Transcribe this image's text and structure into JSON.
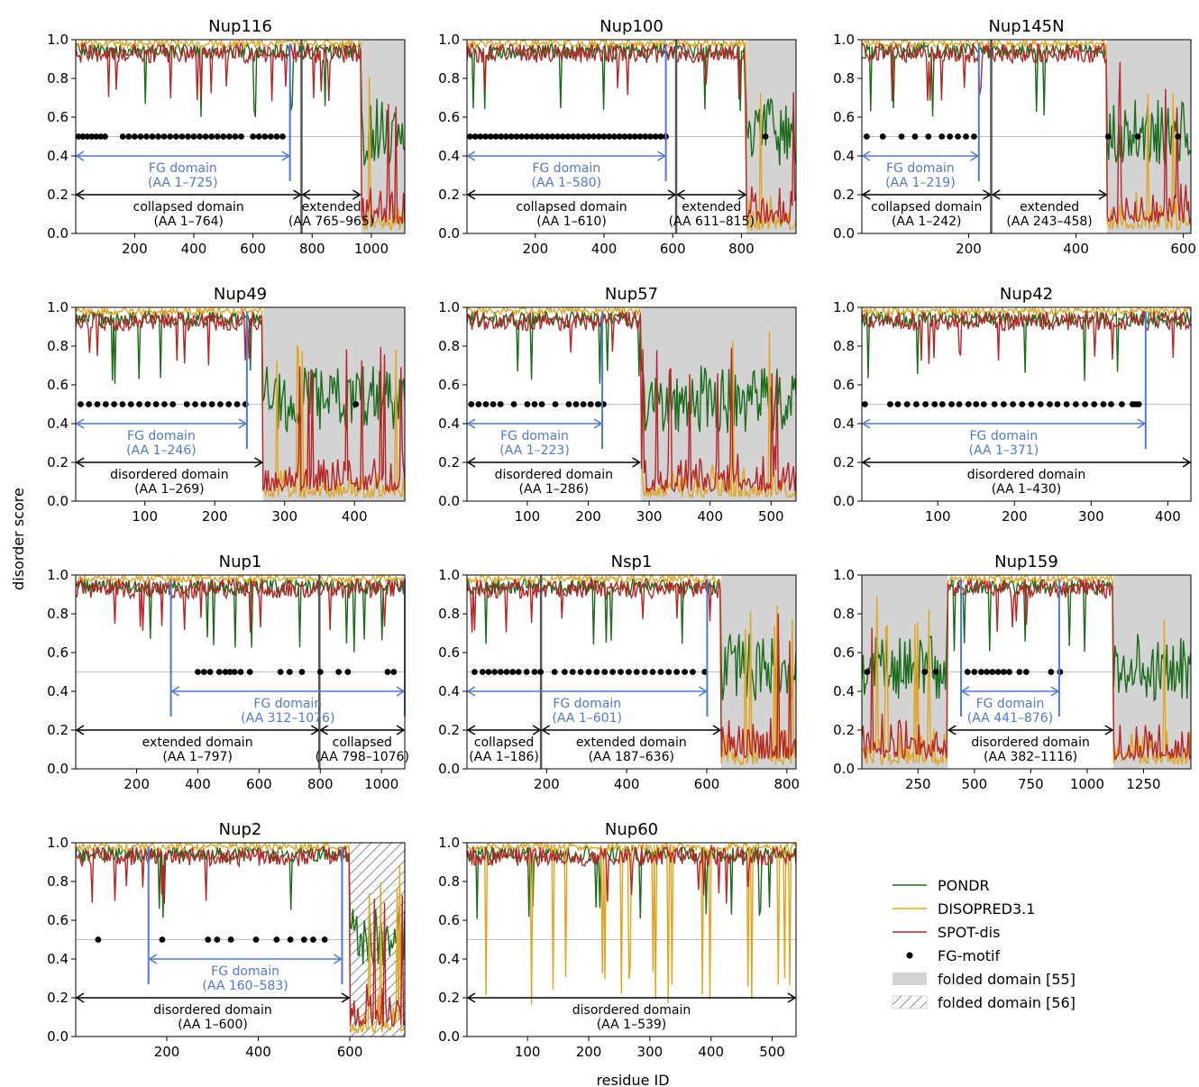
{
  "figure": {
    "ylabel": "disorder score",
    "xlabel": "residue ID"
  },
  "legend": {
    "placement": "bottom-right",
    "items": [
      {
        "label": "PONDR",
        "kind": "line",
        "color": "#1a6b1a"
      },
      {
        "label": "DISOPRED3.1",
        "kind": "line",
        "color": "#e0a520"
      },
      {
        "label": "SPOT-dis",
        "kind": "line",
        "color": "#b52626"
      },
      {
        "label": "FG-motif",
        "kind": "dot",
        "color": "#000000"
      },
      {
        "label": "folded domain [55]",
        "kind": "patch",
        "color": "#d3d3d3"
      },
      {
        "label": "folded domain [56]",
        "kind": "hatch",
        "color": "#d3d3d3"
      }
    ]
  },
  "colors": {
    "pondr": "#1a6b1a",
    "disopred": "#e0a520",
    "spot": "#b52626",
    "fg": "#4f79d8",
    "folded": "#d3d3d3",
    "boundary": "#555555",
    "ref": "#c0c0c0"
  },
  "chart_data": [
    {
      "type": "line",
      "title": "Nup116",
      "xlim": [
        1,
        1113
      ],
      "ylim": [
        0,
        1
      ],
      "xticks": [
        200,
        400,
        600,
        800,
        1000
      ],
      "yticks": [
        0.0,
        0.2,
        0.4,
        0.6,
        0.8,
        1.0
      ],
      "folded": [
        [
          965,
          1113
        ]
      ],
      "hatched": [],
      "fg_line": 725,
      "fg_label": [
        "FG domain",
        "(AA 1–725)"
      ],
      "boundaries": [
        764
      ],
      "domains": [
        {
          "from": 1,
          "to": 764,
          "label": [
            "collapsed domain",
            "(AA 1–764)"
          ]
        },
        {
          "from": 765,
          "to": 965,
          "label": [
            "extended",
            "(AA 765–965)"
          ]
        }
      ],
      "fg_motifs": [
        10,
        25,
        40,
        55,
        70,
        85,
        100,
        160,
        180,
        200,
        220,
        240,
        260,
        280,
        300,
        320,
        340,
        360,
        380,
        400,
        420,
        440,
        460,
        480,
        500,
        520,
        540,
        560,
        600,
        620,
        640,
        660,
        680,
        700
      ]
    },
    {
      "type": "line",
      "title": "Nup100",
      "xlim": [
        1,
        959
      ],
      "ylim": [
        0,
        1
      ],
      "xticks": [
        200,
        400,
        600,
        800
      ],
      "yticks": [
        0.0,
        0.2,
        0.4,
        0.6,
        0.8,
        1.0
      ],
      "folded": [
        [
          815,
          959
        ]
      ],
      "hatched": [],
      "fg_line": 580,
      "fg_label": [
        "FG domain",
        "(AA 1–580)"
      ],
      "boundaries": [
        610
      ],
      "domains": [
        {
          "from": 1,
          "to": 610,
          "label": [
            "collapsed domain",
            "(AA 1–610)"
          ]
        },
        {
          "from": 611,
          "to": 815,
          "label": [
            "extended",
            "(AA 611–815)"
          ]
        }
      ],
      "fg_motifs": [
        10,
        25,
        40,
        55,
        70,
        85,
        100,
        115,
        130,
        145,
        160,
        175,
        190,
        205,
        220,
        235,
        250,
        265,
        280,
        295,
        310,
        325,
        340,
        355,
        370,
        385,
        400,
        415,
        430,
        445,
        460,
        475,
        490,
        505,
        520,
        535,
        550,
        565,
        580,
        870
      ]
    },
    {
      "type": "line",
      "title": "Nup145N",
      "xlim": [
        1,
        614
      ],
      "ylim": [
        0,
        1
      ],
      "xticks": [
        200,
        400,
        600
      ],
      "yticks": [
        0.0,
        0.2,
        0.4,
        0.6,
        0.8,
        1.0
      ],
      "folded": [
        [
          458,
          614
        ]
      ],
      "hatched": [],
      "fg_line": 219,
      "fg_label": [
        "FG domain",
        "(AA 1–219)"
      ],
      "boundaries": [
        242
      ],
      "domains": [
        {
          "from": 1,
          "to": 242,
          "label": [
            "collapsed domain",
            "(AA 1–242)"
          ]
        },
        {
          "from": 243,
          "to": 458,
          "label": [
            "extended",
            "(AA 243–458)"
          ]
        }
      ],
      "fg_motifs": [
        10,
        40,
        75,
        100,
        125,
        150,
        165,
        180,
        195,
        210,
        460,
        515,
        590
      ]
    },
    {
      "type": "line",
      "title": "Nup49",
      "xlim": [
        1,
        472
      ],
      "ylim": [
        0,
        1
      ],
      "xticks": [
        100,
        200,
        300,
        400
      ],
      "yticks": [
        0.0,
        0.2,
        0.4,
        0.6,
        0.8,
        1.0
      ],
      "folded": [
        [
          269,
          472
        ]
      ],
      "hatched": [],
      "fg_line": 246,
      "fg_label": [
        "FG domain",
        "(AA 1–246)"
      ],
      "boundaries": [],
      "domains": [
        {
          "from": 1,
          "to": 269,
          "label": [
            "disordered domain",
            "(AA 1–269)"
          ]
        }
      ],
      "fg_motifs": [
        8,
        20,
        32,
        44,
        56,
        68,
        80,
        92,
        104,
        116,
        128,
        140,
        160,
        172,
        184,
        196,
        208,
        220,
        232,
        244,
        402
      ]
    },
    {
      "type": "line",
      "title": "Nup57",
      "xlim": [
        1,
        541
      ],
      "ylim": [
        0,
        1
      ],
      "xticks": [
        100,
        200,
        300,
        400,
        500
      ],
      "yticks": [
        0.0,
        0.2,
        0.4,
        0.6,
        0.8,
        1.0
      ],
      "folded": [
        [
          286,
          541
        ]
      ],
      "hatched": [],
      "fg_line": 223,
      "fg_label": [
        "FG domain",
        "(AA 1–223)"
      ],
      "boundaries": [],
      "domains": [
        {
          "from": 1,
          "to": 286,
          "label": [
            "disordered domain",
            "(AA 1–286)"
          ]
        }
      ],
      "fg_motifs": [
        8,
        20,
        32,
        44,
        56,
        78,
        100,
        112,
        124,
        146,
        168,
        180,
        192,
        204,
        216,
        225
      ]
    },
    {
      "type": "line",
      "title": "Nup42",
      "xlim": [
        1,
        430
      ],
      "ylim": [
        0,
        1
      ],
      "xticks": [
        100,
        200,
        300,
        400
      ],
      "yticks": [
        0.0,
        0.2,
        0.4,
        0.6,
        0.8,
        1.0
      ],
      "folded": [],
      "hatched": [],
      "fg_line": 371,
      "fg_label": [
        "FG domain",
        "(AA 1–371)"
      ],
      "boundaries": [],
      "domains": [
        {
          "from": 1,
          "to": 430,
          "label": [
            "disordered domain",
            "(AA 1–430)"
          ]
        }
      ],
      "fg_motifs": [
        5,
        38,
        48,
        60,
        72,
        84,
        96,
        106,
        118,
        128,
        140,
        150,
        160,
        174,
        186,
        198,
        210,
        222,
        234,
        246,
        256,
        268,
        280,
        292,
        304,
        316,
        326,
        340,
        354,
        358,
        362
      ]
    },
    {
      "type": "line",
      "title": "Nup1",
      "xlim": [
        1,
        1076
      ],
      "ylim": [
        0,
        1
      ],
      "xticks": [
        200,
        400,
        600,
        800,
        1000
      ],
      "yticks": [
        0.0,
        0.2,
        0.4,
        0.6,
        0.8,
        1.0
      ],
      "folded": [],
      "hatched": [],
      "fg_line": 312,
      "fg_line2": 1076,
      "fg_label": [
        "FG domain",
        "(AA 312–1076)"
      ],
      "boundaries": [
        797
      ],
      "domains": [
        {
          "from": 1,
          "to": 797,
          "label": [
            "extended domain",
            "(AA 1–797)"
          ]
        },
        {
          "from": 798,
          "to": 1076,
          "label": [
            "collapsed",
            "(AA 798–1076)"
          ]
        }
      ],
      "fg_motifs": [
        400,
        420,
        440,
        470,
        490,
        505,
        520,
        540,
        570,
        670,
        700,
        740,
        800,
        860,
        890,
        1020,
        1040
      ]
    },
    {
      "type": "line",
      "title": "Nsp1",
      "xlim": [
        1,
        823
      ],
      "ylim": [
        0,
        1
      ],
      "xticks": [
        200,
        400,
        600,
        800
      ],
      "yticks": [
        0.0,
        0.2,
        0.4,
        0.6,
        0.8,
        1.0
      ],
      "folded": [
        [
          636,
          823
        ]
      ],
      "hatched": [],
      "fg_line": 601,
      "fg_label": [
        "FG domain",
        "(AA 1–601)"
      ],
      "boundaries": [
        186
      ],
      "domains": [
        {
          "from": 1,
          "to": 186,
          "label": [
            "collapsed",
            "(AA 1–186)"
          ]
        },
        {
          "from": 187,
          "to": 636,
          "label": [
            "extended domain",
            "(AA 187–636)"
          ]
        }
      ],
      "fg_motifs": [
        20,
        40,
        55,
        70,
        85,
        100,
        115,
        130,
        150,
        170,
        185,
        220,
        245,
        265,
        285,
        305,
        325,
        345,
        365,
        385,
        405,
        425,
        445,
        465,
        485,
        505,
        525,
        545,
        565,
        595
      ]
    },
    {
      "type": "line",
      "title": "Nup159",
      "xlim": [
        1,
        1460
      ],
      "ylim": [
        0,
        1
      ],
      "xticks": [
        250,
        500,
        750,
        1000,
        1250
      ],
      "yticks": [
        0.0,
        0.2,
        0.4,
        0.6,
        0.8,
        1.0
      ],
      "folded": [
        [
          1,
          382
        ],
        [
          1116,
          1460
        ]
      ],
      "hatched": [],
      "fg_line": 441,
      "fg_line2": 876,
      "fg_label": [
        "FG domain",
        "(AA 441–876)"
      ],
      "boundaries": [],
      "domains": [
        {
          "from": 382,
          "to": 1116,
          "label": [
            "disordered domain",
            "(AA 382–1116)"
          ]
        }
      ],
      "fg_motifs": [
        25,
        280,
        330,
        470,
        500,
        530,
        555,
        580,
        605,
        630,
        655,
        700,
        730,
        840,
        880
      ]
    },
    {
      "type": "line",
      "title": "Nup2",
      "xlim": [
        1,
        720
      ],
      "ylim": [
        0,
        1
      ],
      "xticks": [
        200,
        400,
        600
      ],
      "yticks": [
        0.0,
        0.2,
        0.4,
        0.6,
        0.8,
        1.0
      ],
      "folded": [],
      "hatched": [
        [
          600,
          720
        ]
      ],
      "fg_line": 160,
      "fg_line2": 583,
      "fg_label": [
        "FG domain",
        "(AA 160–583)"
      ],
      "boundaries": [],
      "domains": [
        {
          "from": 1,
          "to": 600,
          "label": [
            "disordered domain",
            "(AA 1–600)"
          ]
        }
      ],
      "fg_motifs": [
        50,
        190,
        290,
        310,
        340,
        395,
        440,
        470,
        500,
        520,
        545
      ]
    },
    {
      "type": "line",
      "title": "Nup60",
      "xlim": [
        1,
        539
      ],
      "ylim": [
        0,
        1
      ],
      "xticks": [
        100,
        200,
        300,
        400,
        500
      ],
      "yticks": [
        0.0,
        0.2,
        0.4,
        0.6,
        0.8,
        1.0
      ],
      "folded": [],
      "hatched": [],
      "fg_line": null,
      "fg_label": null,
      "boundaries": [],
      "domains": [
        {
          "from": 1,
          "to": 539,
          "label": [
            "disordered domain",
            "(AA 1–539)"
          ]
        }
      ],
      "fg_motifs": []
    }
  ]
}
